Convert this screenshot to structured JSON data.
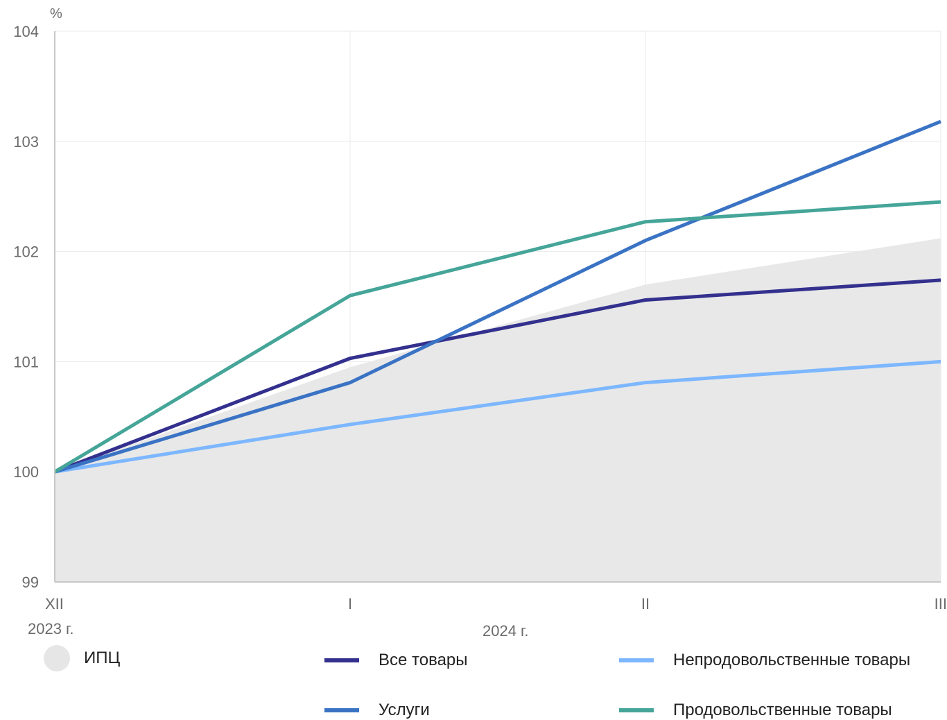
{
  "chart_data": {
    "type": "line",
    "y_unit": "%",
    "ylim": [
      99,
      104
    ],
    "y_ticks": [
      "99",
      "100",
      "101",
      "102",
      "103",
      "104"
    ],
    "categories": [
      "XII",
      "I",
      "II",
      "III"
    ],
    "year_labels": [
      "2023 г.",
      "2024 г."
    ],
    "grid": true,
    "area": {
      "name": "ИПЦ",
      "color": "#e8e8e8",
      "values": [
        100,
        100.95,
        101.7,
        102.12
      ]
    },
    "series": [
      {
        "name": "Все товары",
        "color": "#33308e",
        "values": [
          100,
          101.03,
          101.56,
          101.74
        ]
      },
      {
        "name": "Услуги",
        "color": "#3a73c4",
        "values": [
          100,
          100.81,
          102.1,
          103.18
        ]
      },
      {
        "name": "Непродовольственные товары",
        "color": "#7cb7ff",
        "values": [
          100,
          100.43,
          100.81,
          101.0
        ]
      },
      {
        "name": "Продовольственные товары",
        "color": "#45a598",
        "values": [
          100,
          101.6,
          102.27,
          102.45
        ]
      }
    ]
  },
  "legend": {
    "cpi": "ИПЦ",
    "all_goods": "Все товары",
    "services": "Услуги",
    "non_food": "Непродовольственные товары",
    "food": "Продовольственные товары"
  }
}
